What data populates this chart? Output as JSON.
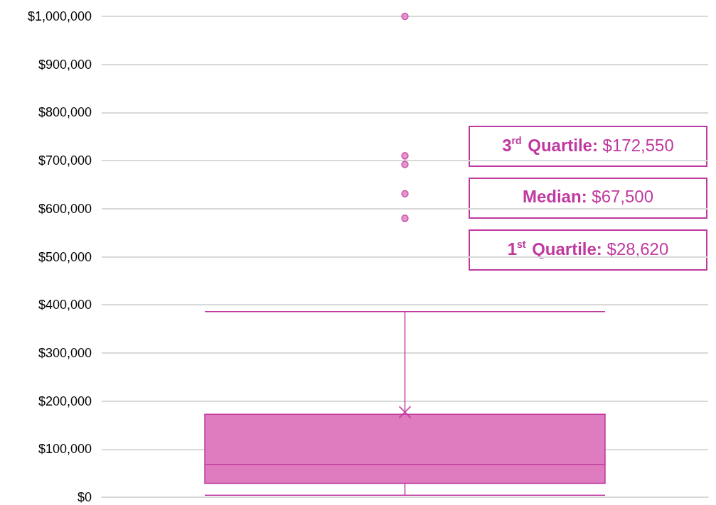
{
  "chart_data": {
    "type": "box",
    "categories": [
      null
    ],
    "color": "#df7bbf",
    "boxes": [
      {
        "low": 4000,
        "q1": 28620,
        "median": 67500,
        "q3": 172550,
        "high": 386000,
        "mean": 177000,
        "outliers": [
          1000000,
          710000,
          692000,
          631000,
          580000
        ]
      }
    ],
    "ylim": [
      0,
      1000000
    ],
    "yticks": [
      {
        "value": 0,
        "label": "$0"
      },
      {
        "value": 100000,
        "label": "$100,000"
      },
      {
        "value": 200000,
        "label": "$200,000"
      },
      {
        "value": 300000,
        "label": "$300,000"
      },
      {
        "value": 400000,
        "label": "$400,000"
      },
      {
        "value": 500000,
        "label": "$500,000"
      },
      {
        "value": 600000,
        "label": "$600,000"
      },
      {
        "value": 700000,
        "label": "$700,000"
      },
      {
        "value": 800000,
        "label": "$800,000"
      },
      {
        "value": 900000,
        "label": "$900,000"
      },
      {
        "value": 1000000,
        "label": "$1,000,000"
      }
    ],
    "grid": "y",
    "annotations": [
      "3$^{rd}$ Quartile: $172,550",
      "Median: $67,500",
      "1$^{st}$ Quartile: $28,620"
    ]
  }
}
